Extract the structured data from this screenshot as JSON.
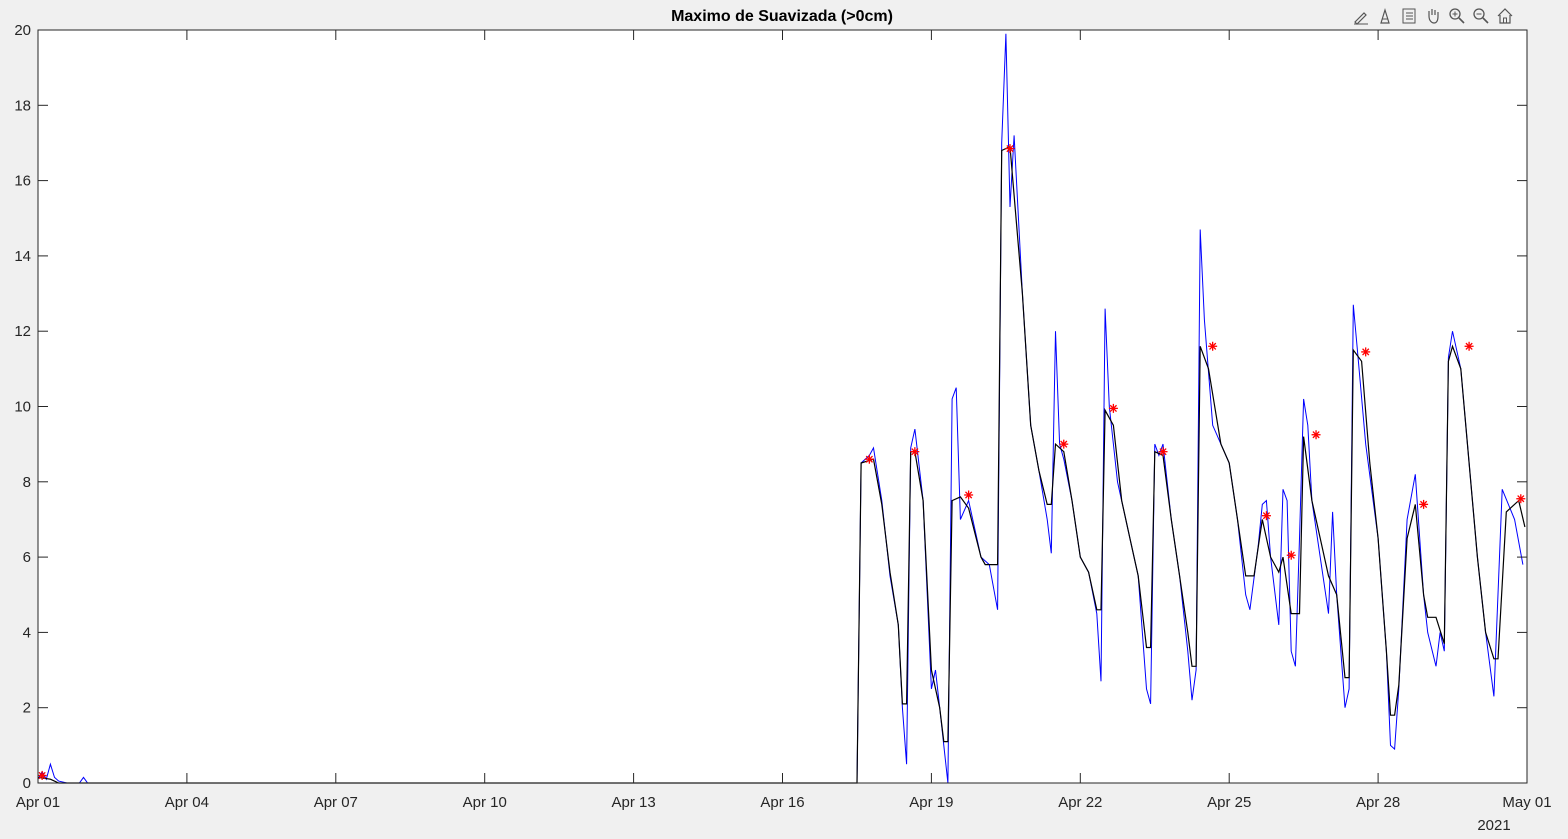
{
  "toolbar": {
    "icons": [
      "brush-icon",
      "data-tips-icon",
      "legend-icon",
      "pan-icon",
      "zoom-in-icon",
      "zoom-out-icon",
      "home-icon"
    ]
  },
  "chart_data": {
    "type": "line",
    "title": "Maximo de Suavizada (>0cm)",
    "xlabel": "",
    "ylabel": "",
    "xlim": [
      "2021-04-01",
      "2021-05-01"
    ],
    "ylim": [
      0,
      20
    ],
    "x_tick_labels": [
      "Apr 01",
      "Apr 04",
      "Apr 07",
      "Apr 10",
      "Apr 13",
      "Apr 16",
      "Apr 19",
      "Apr 22",
      "Apr 25",
      "Apr 28",
      "May 01"
    ],
    "x_tick_dates": [
      "2021-04-01",
      "2021-04-04",
      "2021-04-07",
      "2021-04-10",
      "2021-04-13",
      "2021-04-16",
      "2021-04-19",
      "2021-04-22",
      "2021-04-25",
      "2021-04-28",
      "2021-05-01"
    ],
    "year_label": "2021",
    "y_ticks": [
      0,
      2,
      4,
      6,
      8,
      10,
      12,
      14,
      16,
      18,
      20
    ],
    "grid": false,
    "colors": {
      "raw": "#0000ff",
      "smooth": "#000000",
      "peaks": "#ff0000"
    },
    "series": [
      {
        "style": "line",
        "color": "#0000ff",
        "points": [
          [
            "2021-04-01 00:00",
            0.1
          ],
          [
            "2021-04-01 02:00",
            0.3
          ],
          [
            "2021-04-01 04:00",
            0.1
          ],
          [
            "2021-04-01 06:00",
            0.5
          ],
          [
            "2021-04-01 08:00",
            0.15
          ],
          [
            "2021-04-01 10:00",
            0.05
          ],
          [
            "2021-04-01 14:00",
            0.0
          ],
          [
            "2021-04-01 20:00",
            0.0
          ],
          [
            "2021-04-01 22:00",
            0.15
          ],
          [
            "2021-04-02 00:00",
            0.0
          ],
          [
            "2021-04-17 12:00",
            0.0
          ],
          [
            "2021-04-17 14:00",
            8.5
          ],
          [
            "2021-04-17 18:00",
            8.7
          ],
          [
            "2021-04-17 20:00",
            8.9
          ],
          [
            "2021-04-18 00:00",
            7.5
          ],
          [
            "2021-04-18 04:00",
            5.5
          ],
          [
            "2021-04-18 08:00",
            4.2
          ],
          [
            "2021-04-18 10:00",
            2.0
          ],
          [
            "2021-04-18 12:00",
            0.5
          ],
          [
            "2021-04-18 14:00",
            8.9
          ],
          [
            "2021-04-18 16:00",
            9.4
          ],
          [
            "2021-04-18 20:00",
            7.5
          ],
          [
            "2021-04-19 00:00",
            2.5
          ],
          [
            "2021-04-19 02:00",
            3.0
          ],
          [
            "2021-04-19 04:00",
            2.0
          ],
          [
            "2021-04-19 06:00",
            1.0
          ],
          [
            "2021-04-19 08:00",
            0.0
          ],
          [
            "2021-04-19 10:00",
            10.2
          ],
          [
            "2021-04-19 12:00",
            10.5
          ],
          [
            "2021-04-19 14:00",
            7.0
          ],
          [
            "2021-04-19 18:00",
            7.5
          ],
          [
            "2021-04-20 00:00",
            6.0
          ],
          [
            "2021-04-20 04:00",
            5.8
          ],
          [
            "2021-04-20 08:00",
            4.6
          ],
          [
            "2021-04-20 10:00",
            17.0
          ],
          [
            "2021-04-20 12:00",
            19.9
          ],
          [
            "2021-04-20 14:00",
            15.3
          ],
          [
            "2021-04-20 16:00",
            17.2
          ],
          [
            "2021-04-20 20:00",
            13.0
          ],
          [
            "2021-04-21 00:00",
            9.5
          ],
          [
            "2021-04-21 04:00",
            8.3
          ],
          [
            "2021-04-21 08:00",
            7.0
          ],
          [
            "2021-04-21 10:00",
            6.1
          ],
          [
            "2021-04-21 12:00",
            12.0
          ],
          [
            "2021-04-21 14:00",
            9.0
          ],
          [
            "2021-04-21 16:00",
            8.6
          ],
          [
            "2021-04-21 20:00",
            7.5
          ],
          [
            "2021-04-22 00:00",
            6.0
          ],
          [
            "2021-04-22 04:00",
            5.6
          ],
          [
            "2021-04-22 08:00",
            4.5
          ],
          [
            "2021-04-22 10:00",
            2.7
          ],
          [
            "2021-04-22 12:00",
            12.6
          ],
          [
            "2021-04-22 14:00",
            10.0
          ],
          [
            "2021-04-22 18:00",
            8.0
          ],
          [
            "2021-04-23 00:00",
            6.5
          ],
          [
            "2021-04-23 04:00",
            5.5
          ],
          [
            "2021-04-23 08:00",
            2.5
          ],
          [
            "2021-04-23 10:00",
            2.1
          ],
          [
            "2021-04-23 12:00",
            9.0
          ],
          [
            "2021-04-23 14:00",
            8.7
          ],
          [
            "2021-04-23 16:00",
            9.0
          ],
          [
            "2021-04-23 20:00",
            7.0
          ],
          [
            "2021-04-24 00:00",
            5.5
          ],
          [
            "2021-04-24 04:00",
            3.5
          ],
          [
            "2021-04-24 06:00",
            2.2
          ],
          [
            "2021-04-24 08:00",
            3.0
          ],
          [
            "2021-04-24 10:00",
            14.7
          ],
          [
            "2021-04-24 12:00",
            12.3
          ],
          [
            "2021-04-24 16:00",
            9.5
          ],
          [
            "2021-04-25 00:00",
            8.5
          ],
          [
            "2021-04-25 04:00",
            7.0
          ],
          [
            "2021-04-25 08:00",
            5.0
          ],
          [
            "2021-04-25 10:00",
            4.6
          ],
          [
            "2021-04-25 14:00",
            6.3
          ],
          [
            "2021-04-25 16:00",
            7.4
          ],
          [
            "2021-04-25 18:00",
            7.5
          ],
          [
            "2021-04-25 20:00",
            6.0
          ],
          [
            "2021-04-26 00:00",
            4.2
          ],
          [
            "2021-04-26 02:00",
            7.8
          ],
          [
            "2021-04-26 04:00",
            7.5
          ],
          [
            "2021-04-26 06:00",
            3.5
          ],
          [
            "2021-04-26 08:00",
            3.1
          ],
          [
            "2021-04-26 10:00",
            6.5
          ],
          [
            "2021-04-26 12:00",
            10.2
          ],
          [
            "2021-04-26 14:00",
            9.5
          ],
          [
            "2021-04-26 16:00",
            7.5
          ],
          [
            "2021-04-26 20:00",
            6.0
          ],
          [
            "2021-04-27 00:00",
            4.5
          ],
          [
            "2021-04-27 02:00",
            7.2
          ],
          [
            "2021-04-27 04:00",
            5.0
          ],
          [
            "2021-04-27 08:00",
            2.0
          ],
          [
            "2021-04-27 10:00",
            2.5
          ],
          [
            "2021-04-27 12:00",
            12.7
          ],
          [
            "2021-04-27 14:00",
            11.5
          ],
          [
            "2021-04-27 18:00",
            9.0
          ],
          [
            "2021-04-28 00:00",
            6.5
          ],
          [
            "2021-04-28 04:00",
            3.5
          ],
          [
            "2021-04-28 06:00",
            1.0
          ],
          [
            "2021-04-28 08:00",
            0.9
          ],
          [
            "2021-04-28 10:00",
            2.5
          ],
          [
            "2021-04-28 14:00",
            7.0
          ],
          [
            "2021-04-28 18:00",
            8.2
          ],
          [
            "2021-04-28 22:00",
            5.0
          ],
          [
            "2021-04-29 00:00",
            4.0
          ],
          [
            "2021-04-29 04:00",
            3.1
          ],
          [
            "2021-04-29 06:00",
            4.0
          ],
          [
            "2021-04-29 08:00",
            3.5
          ],
          [
            "2021-04-29 10:00",
            11.3
          ],
          [
            "2021-04-29 12:00",
            12.0
          ],
          [
            "2021-04-29 16:00",
            11.0
          ],
          [
            "2021-04-30 00:00",
            6.0
          ],
          [
            "2021-04-30 04:00",
            4.0
          ],
          [
            "2021-04-30 08:00",
            2.3
          ],
          [
            "2021-04-30 12:00",
            7.8
          ],
          [
            "2021-04-30 18:00",
            7.0
          ],
          [
            "2021-04-30 22:00",
            5.8
          ]
        ]
      },
      {
        "style": "line",
        "color": "#000000",
        "points": [
          [
            "2021-04-01 00:00",
            0.15
          ],
          [
            "2021-04-01 06:00",
            0.1
          ],
          [
            "2021-04-01 10:00",
            0.0
          ],
          [
            "2021-04-17 12:00",
            0.0
          ],
          [
            "2021-04-17 14:00",
            8.5
          ],
          [
            "2021-04-17 20:00",
            8.6
          ],
          [
            "2021-04-18 00:00",
            7.4
          ],
          [
            "2021-04-18 04:00",
            5.6
          ],
          [
            "2021-04-18 08:00",
            4.2
          ],
          [
            "2021-04-18 10:00",
            2.1
          ],
          [
            "2021-04-18 12:00",
            2.1
          ],
          [
            "2021-04-18 14:00",
            8.8
          ],
          [
            "2021-04-18 16:00",
            8.8
          ],
          [
            "2021-04-18 20:00",
            7.5
          ],
          [
            "2021-04-19 00:00",
            3.0
          ],
          [
            "2021-04-19 04:00",
            2.0
          ],
          [
            "2021-04-19 06:00",
            1.1
          ],
          [
            "2021-04-19 08:00",
            1.1
          ],
          [
            "2021-04-19 10:00",
            7.5
          ],
          [
            "2021-04-19 14:00",
            7.6
          ],
          [
            "2021-04-19 18:00",
            7.3
          ],
          [
            "2021-04-20 00:00",
            6.0
          ],
          [
            "2021-04-20 02:00",
            5.8
          ],
          [
            "2021-04-20 08:00",
            5.8
          ],
          [
            "2021-04-20 10:00",
            16.8
          ],
          [
            "2021-04-20 14:00",
            16.9
          ],
          [
            "2021-04-20 20:00",
            13.0
          ],
          [
            "2021-04-21 00:00",
            9.5
          ],
          [
            "2021-04-21 04:00",
            8.3
          ],
          [
            "2021-04-21 08:00",
            7.4
          ],
          [
            "2021-04-21 10:00",
            7.4
          ],
          [
            "2021-04-21 12:00",
            9.0
          ],
          [
            "2021-04-21 16:00",
            8.8
          ],
          [
            "2021-04-21 20:00",
            7.5
          ],
          [
            "2021-04-22 00:00",
            6.0
          ],
          [
            "2021-04-22 04:00",
            5.6
          ],
          [
            "2021-04-22 08:00",
            4.6
          ],
          [
            "2021-04-22 10:00",
            4.6
          ],
          [
            "2021-04-22 12:00",
            9.9
          ],
          [
            "2021-04-22 16:00",
            9.5
          ],
          [
            "2021-04-22 20:00",
            7.5
          ],
          [
            "2021-04-23 00:00",
            6.5
          ],
          [
            "2021-04-23 04:00",
            5.5
          ],
          [
            "2021-04-23 08:00",
            3.6
          ],
          [
            "2021-04-23 10:00",
            3.6
          ],
          [
            "2021-04-23 12:00",
            8.8
          ],
          [
            "2021-04-23 16:00",
            8.7
          ],
          [
            "2021-04-23 20:00",
            7.0
          ],
          [
            "2021-04-24 00:00",
            5.5
          ],
          [
            "2021-04-24 04:00",
            4.0
          ],
          [
            "2021-04-24 06:00",
            3.1
          ],
          [
            "2021-04-24 08:00",
            3.1
          ],
          [
            "2021-04-24 10:00",
            11.6
          ],
          [
            "2021-04-24 14:00",
            11.0
          ],
          [
            "2021-04-24 20:00",
            9.0
          ],
          [
            "2021-04-25 00:00",
            8.5
          ],
          [
            "2021-04-25 04:00",
            7.0
          ],
          [
            "2021-04-25 08:00",
            5.5
          ],
          [
            "2021-04-25 12:00",
            5.5
          ],
          [
            "2021-04-25 16:00",
            7.0
          ],
          [
            "2021-04-25 20:00",
            6.0
          ],
          [
            "2021-04-26 00:00",
            5.6
          ],
          [
            "2021-04-26 02:00",
            6.0
          ],
          [
            "2021-04-26 06:00",
            4.5
          ],
          [
            "2021-04-26 10:00",
            4.5
          ],
          [
            "2021-04-26 12:00",
            9.2
          ],
          [
            "2021-04-26 16:00",
            7.5
          ],
          [
            "2021-04-26 20:00",
            6.5
          ],
          [
            "2021-04-27 00:00",
            5.5
          ],
          [
            "2021-04-27 04:00",
            5.0
          ],
          [
            "2021-04-27 08:00",
            2.8
          ],
          [
            "2021-04-27 10:00",
            2.8
          ],
          [
            "2021-04-27 12:00",
            11.5
          ],
          [
            "2021-04-27 16:00",
            11.2
          ],
          [
            "2021-04-27 20:00",
            8.5
          ],
          [
            "2021-04-28 00:00",
            6.5
          ],
          [
            "2021-04-28 04:00",
            3.5
          ],
          [
            "2021-04-28 06:00",
            1.8
          ],
          [
            "2021-04-28 08:00",
            1.8
          ],
          [
            "2021-04-28 10:00",
            2.6
          ],
          [
            "2021-04-28 14:00",
            6.5
          ],
          [
            "2021-04-28 18:00",
            7.4
          ],
          [
            "2021-04-28 22:00",
            5.0
          ],
          [
            "2021-04-29 00:00",
            4.4
          ],
          [
            "2021-04-29 04:00",
            4.4
          ],
          [
            "2021-04-29 08:00",
            3.7
          ],
          [
            "2021-04-29 10:00",
            11.2
          ],
          [
            "2021-04-29 12:00",
            11.6
          ],
          [
            "2021-04-29 16:00",
            11.0
          ],
          [
            "2021-04-30 00:00",
            6.0
          ],
          [
            "2021-04-30 04:00",
            4.0
          ],
          [
            "2021-04-30 08:00",
            3.3
          ],
          [
            "2021-04-30 10:00",
            3.3
          ],
          [
            "2021-04-30 14:00",
            7.2
          ],
          [
            "2021-04-30 20:00",
            7.5
          ],
          [
            "2021-04-30 23:00",
            6.8
          ]
        ]
      },
      {
        "style": "markers",
        "marker": "*",
        "color": "#ff0000",
        "points": [
          [
            "2021-04-01 02:00",
            0.2
          ],
          [
            "2021-04-17 18:00",
            8.6
          ],
          [
            "2021-04-18 16:00",
            8.8
          ],
          [
            "2021-04-19 18:00",
            7.65
          ],
          [
            "2021-04-20 14:00",
            16.85
          ],
          [
            "2021-04-21 16:00",
            9.0
          ],
          [
            "2021-04-22 16:00",
            9.95
          ],
          [
            "2021-04-23 16:00",
            8.8
          ],
          [
            "2021-04-24 16:00",
            11.6
          ],
          [
            "2021-04-25 18:00",
            7.1
          ],
          [
            "2021-04-26 06:00",
            6.05
          ],
          [
            "2021-04-26 18:00",
            9.25
          ],
          [
            "2021-04-27 18:00",
            11.45
          ],
          [
            "2021-04-28 22:00",
            7.4
          ],
          [
            "2021-04-29 20:00",
            11.6
          ],
          [
            "2021-04-30 21:00",
            7.55
          ]
        ]
      }
    ]
  }
}
